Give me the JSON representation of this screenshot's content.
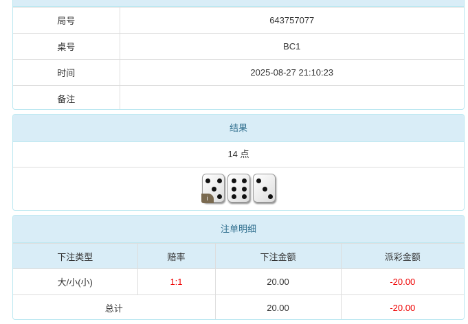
{
  "info": {
    "rows": [
      {
        "label": "局号",
        "value": "643757077"
      },
      {
        "label": "桌号",
        "value": "BC1"
      },
      {
        "label": "时间",
        "value": "2025-08-27 21:10:23"
      },
      {
        "label": "备注",
        "value": ""
      }
    ]
  },
  "result": {
    "title": "结果",
    "points": "14 点",
    "dice": [
      5,
      6,
      3
    ],
    "badge": "i"
  },
  "bets": {
    "title": "注单明细",
    "headers": [
      "下注类型",
      "赔率",
      "下注金额",
      "派彩金额"
    ],
    "row": {
      "type": "大/小(小)",
      "odds": "1:1",
      "amount": "20.00",
      "payout": "-20.00"
    },
    "total": {
      "label": "总计",
      "amount": "20.00",
      "payout": "-20.00"
    }
  },
  "colors": {
    "header_bg": "#d9edf7",
    "negative": "#ee0000"
  }
}
